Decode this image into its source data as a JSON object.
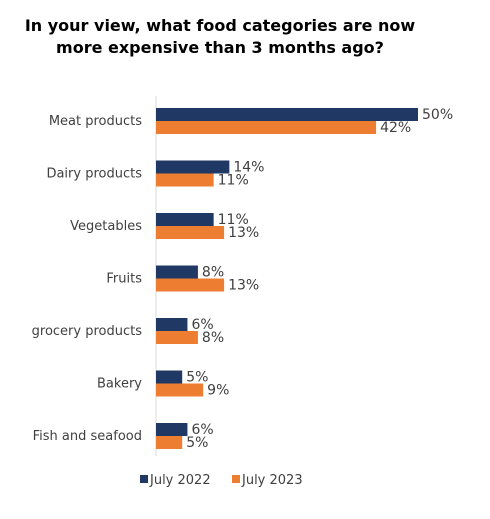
{
  "title_lines": [
    "In your view, what food categories are now",
    "more expensive than 3 months ago?"
  ],
  "chart_data": {
    "type": "bar",
    "orientation": "horizontal",
    "title": "In your view, what food categories are now more expensive than 3 months ago?",
    "categories": [
      "Meat products",
      "Dairy products",
      "Vegetables",
      "Fruits",
      "grocery products",
      "Bakery",
      "Fish and seafood"
    ],
    "series": [
      {
        "name": "July 2022",
        "color": "#1f3864",
        "values": [
          50,
          14,
          11,
          8,
          6,
          5,
          6
        ],
        "labels": [
          "50%",
          "14%",
          "11%",
          "8%",
          "6%",
          "5%",
          "6%"
        ]
      },
      {
        "name": "July 2023",
        "color": "#ed7d31",
        "values": [
          42,
          11,
          13,
          13,
          8,
          9,
          5
        ],
        "labels": [
          "42%",
          "11%",
          "13%",
          "13%",
          "8%",
          "9%",
          "5%"
        ]
      }
    ],
    "xlim": [
      0,
      50
    ],
    "value_suffix": "%",
    "grid": false,
    "legend_position": "bottom"
  }
}
